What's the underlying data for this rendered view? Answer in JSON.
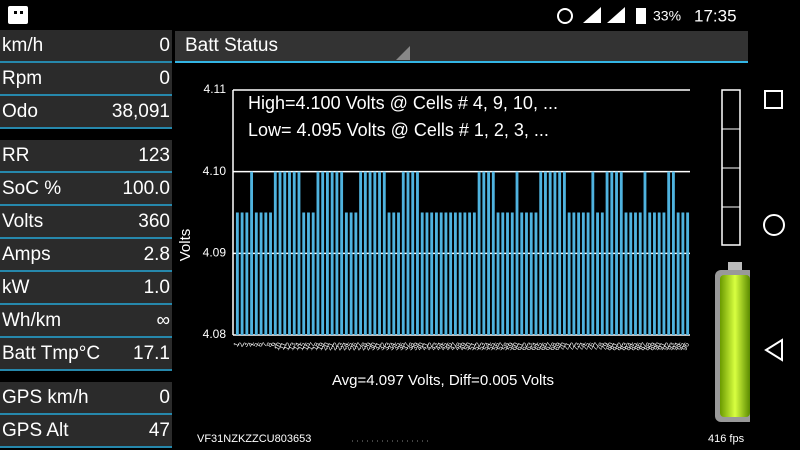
{
  "status_bar": {
    "battery": "33%",
    "time": "17:35"
  },
  "sidebar": {
    "groups": [
      [
        {
          "label": "km/h",
          "value": "0"
        },
        {
          "label": "Rpm",
          "value": "0"
        },
        {
          "label": "Odo",
          "value": "38,091"
        }
      ],
      [
        {
          "label": "RR",
          "value": "123"
        },
        {
          "label": "SoC %",
          "value": "100.0"
        },
        {
          "label": "Volts",
          "value": "360"
        },
        {
          "label": "Amps",
          "value": "2.8"
        },
        {
          "label": "kW",
          "value": "1.0"
        },
        {
          "label": "Wh/km",
          "value": "∞"
        },
        {
          "label": "Batt Tmp°C",
          "value": "17.1"
        }
      ],
      [
        {
          "label": "GPS km/h",
          "value": "0"
        },
        {
          "label": "GPS Alt",
          "value": "47"
        }
      ]
    ]
  },
  "header": {
    "title": "Batt Status"
  },
  "chart_data": {
    "type": "bar",
    "color": "#4fb3df",
    "annotations": [
      "High=4.100 Volts @ Cells # 4, 9, 10,  ...",
      "Low= 4.095 Volts @ Cells # 1, 2, 3,  ..."
    ],
    "x_label": "Avg=4.097 Volts, Diff=0.005 Volts",
    "y_label": "Volts",
    "ylim": [
      4.08,
      4.11
    ],
    "yticks": [
      4.11,
      {
        "value": 4.1,
        "label": "4.10"
      },
      4.09,
      4.08
    ],
    "grid": true,
    "categories": [
      "1",
      "2",
      "3",
      "4",
      "5",
      "6",
      "7",
      "8",
      "9",
      "10",
      "11",
      "12",
      "13",
      "14",
      "15",
      "16",
      "17",
      "18",
      "19",
      "20",
      "21",
      "22",
      "23",
      "24",
      "25",
      "26",
      "27",
      "28",
      "29",
      "30",
      "31",
      "32",
      "33",
      "34",
      "35",
      "36",
      "37",
      "38",
      "39",
      "40",
      "41",
      "42",
      "43",
      "44",
      "45",
      "46",
      "47",
      "48",
      "49",
      "50",
      "51",
      "52",
      "53",
      "54",
      "55",
      "56",
      "57",
      "58",
      "59",
      "60",
      "61",
      "62",
      "63",
      "64",
      "65",
      "66",
      "67",
      "68",
      "69",
      "70",
      "71",
      "72",
      "73",
      "74",
      "75",
      "76",
      "77",
      "78",
      "79",
      "80",
      "81",
      "82",
      "83",
      "84",
      "85",
      "86",
      "87",
      "88",
      "89",
      "90",
      "91",
      "92",
      "93",
      "94",
      "95",
      "96"
    ],
    "values": [
      4.095,
      4.095,
      4.095,
      4.1,
      4.095,
      4.095,
      4.095,
      4.095,
      4.1,
      4.1,
      4.1,
      4.1,
      4.1,
      4.1,
      4.095,
      4.095,
      4.095,
      4.1,
      4.1,
      4.1,
      4.1,
      4.1,
      4.1,
      4.095,
      4.095,
      4.095,
      4.1,
      4.1,
      4.1,
      4.1,
      4.1,
      4.1,
      4.095,
      4.095,
      4.095,
      4.1,
      4.1,
      4.1,
      4.1,
      4.095,
      4.095,
      4.095,
      4.095,
      4.095,
      4.095,
      4.095,
      4.095,
      4.095,
      4.095,
      4.095,
      4.095,
      4.1,
      4.1,
      4.1,
      4.1,
      4.095,
      4.095,
      4.095,
      4.095,
      4.1,
      4.095,
      4.095,
      4.095,
      4.095,
      4.1,
      4.1,
      4.1,
      4.1,
      4.1,
      4.1,
      4.095,
      4.095,
      4.095,
      4.095,
      4.095,
      4.1,
      4.095,
      4.095,
      4.1,
      4.1,
      4.1,
      4.1,
      4.095,
      4.095,
      4.095,
      4.095,
      4.1,
      4.095,
      4.095,
      4.095,
      4.095,
      4.1,
      4.1,
      4.095,
      4.095,
      4.095
    ]
  },
  "footer": {
    "vin": "VF31NZKZZCU803653",
    "fps": "416 fps"
  }
}
